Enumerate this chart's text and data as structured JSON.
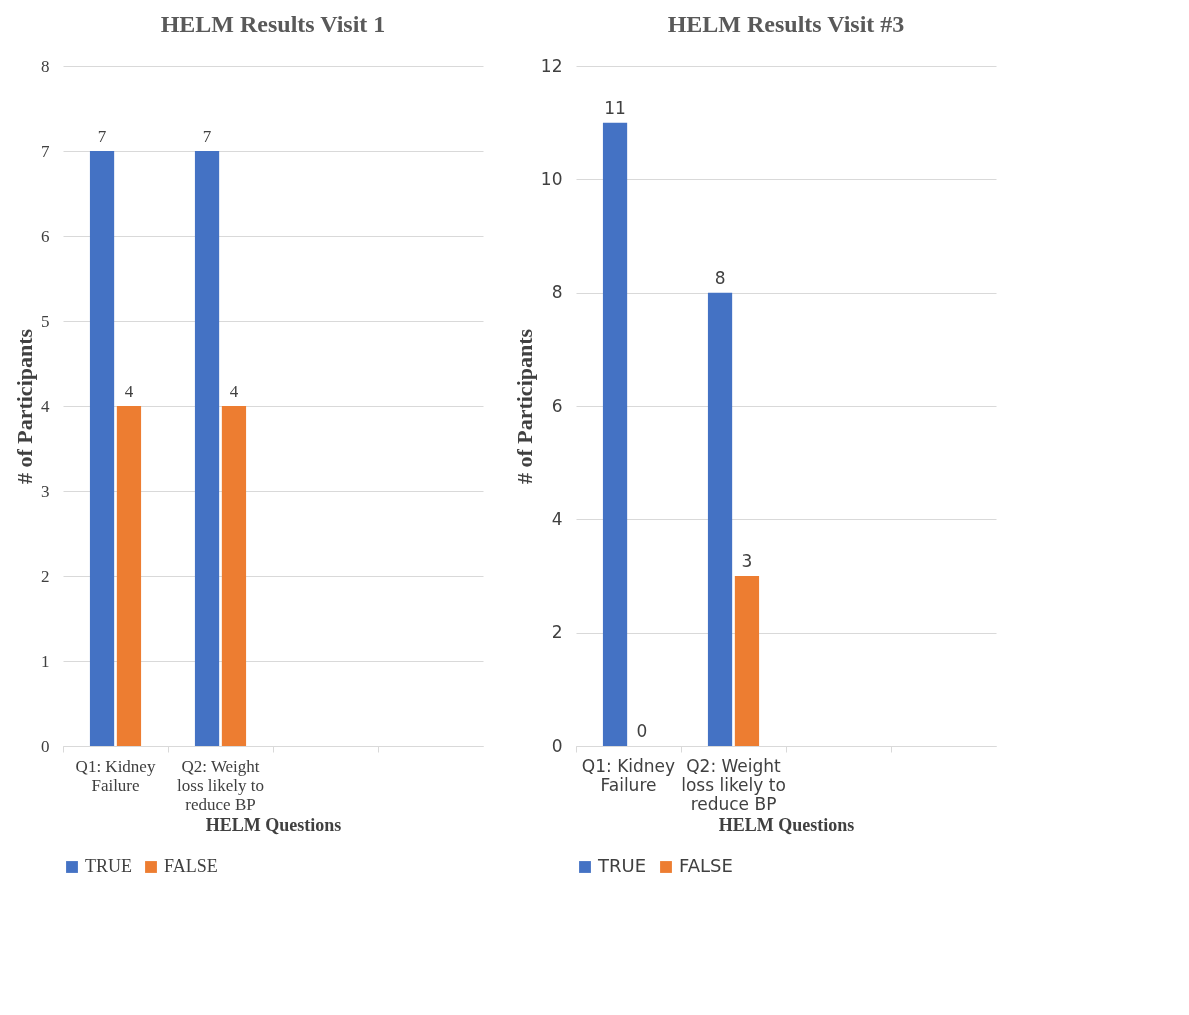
{
  "chart_data": [
    {
      "type": "bar",
      "title": "HELM Results Visit 1",
      "xlabel": "HELM Questions",
      "ylabel": "# of Participants",
      "categories": [
        "Q1: Kidney Failure",
        "Q2: Weight loss likely to reduce BP",
        null,
        null
      ],
      "series": [
        {
          "name": "TRUE",
          "color": "#4472c4",
          "values": [
            7,
            7,
            null,
            null
          ]
        },
        {
          "name": "FALSE",
          "color": "#ed7d31",
          "values": [
            4,
            4,
            null,
            null
          ]
        }
      ],
      "ylim": [
        0,
        8
      ],
      "yticks": [
        0,
        1,
        2,
        3,
        4,
        5,
        6,
        7,
        8
      ],
      "grid": "y",
      "legend": "bottom",
      "data_labels": true
    },
    {
      "type": "bar",
      "title": "HELM Results Visit #3",
      "xlabel": "HELM Questions",
      "ylabel": "# of Participants",
      "categories": [
        "Q1: Kidney Failure",
        "Q2: Weight loss likely to reduce BP",
        null,
        null
      ],
      "series": [
        {
          "name": "TRUE",
          "color": "#4472c4",
          "values": [
            11,
            8,
            null,
            null
          ]
        },
        {
          "name": "FALSE",
          "color": "#ed7d31",
          "values": [
            0,
            3,
            null,
            null
          ]
        }
      ],
      "ylim": [
        0,
        12
      ],
      "yticks": [
        0,
        2,
        4,
        6,
        8,
        10,
        12
      ],
      "grid": "y",
      "legend": "bottom",
      "data_labels": true
    }
  ]
}
